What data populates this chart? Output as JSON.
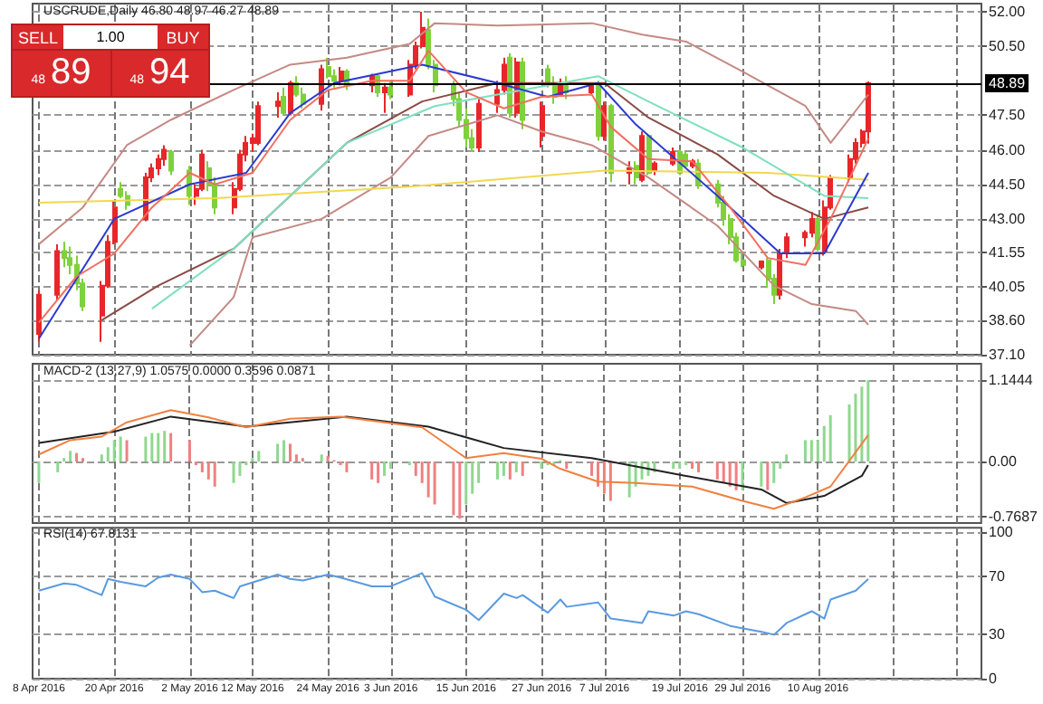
{
  "chart_data": [
    {
      "type": "candlestick",
      "title": "USCRUDE,Daily 46.80 48.97 46.27 48.89",
      "annotations": [
        "SELL",
        "1.00",
        "BUY",
        "48",
        "89",
        "48",
        "94"
      ],
      "x": [
        "2016-04-08",
        "2016-04-11",
        "2016-04-12",
        "2016-04-13",
        "2016-04-14",
        "2016-04-15",
        "2016-04-18",
        "2016-04-19",
        "2016-04-20",
        "2016-04-21",
        "2016-04-22",
        "2016-04-25",
        "2016-04-26",
        "2016-04-27",
        "2016-04-28",
        "2016-04-29",
        "2016-05-02",
        "2016-05-03",
        "2016-05-04",
        "2016-05-05",
        "2016-05-06",
        "2016-05-09",
        "2016-05-10",
        "2016-05-11",
        "2016-05-12",
        "2016-05-13",
        "2016-05-16",
        "2016-05-17",
        "2016-05-18",
        "2016-05-19",
        "2016-05-20",
        "2016-05-23",
        "2016-05-24",
        "2016-05-25",
        "2016-05-26",
        "2016-05-27",
        "2016-05-31",
        "2016-06-01",
        "2016-06-02",
        "2016-06-03",
        "2016-06-06",
        "2016-06-07",
        "2016-06-08",
        "2016-06-09",
        "2016-06-10",
        "2016-06-13",
        "2016-06-14",
        "2016-06-15",
        "2016-06-16",
        "2016-06-17",
        "2016-06-20",
        "2016-06-21",
        "2016-06-22",
        "2016-06-23",
        "2016-06-24",
        "2016-06-27",
        "2016-06-28",
        "2016-06-29",
        "2016-06-30",
        "2016-07-01",
        "2016-07-05",
        "2016-07-06",
        "2016-07-07",
        "2016-07-08",
        "2016-07-11",
        "2016-07-12",
        "2016-07-13",
        "2016-07-14",
        "2016-07-15",
        "2016-07-18",
        "2016-07-19",
        "2016-07-20",
        "2016-07-21",
        "2016-07-22",
        "2016-07-25",
        "2016-07-26",
        "2016-07-27",
        "2016-07-28",
        "2016-07-29",
        "2016-08-01",
        "2016-08-02",
        "2016-08-03",
        "2016-08-04",
        "2016-08-05",
        "2016-08-08",
        "2016-08-09",
        "2016-08-10",
        "2016-08-11",
        "2016-08-12",
        "2016-08-15",
        "2016-08-16",
        "2016-08-17",
        "2016-08-18"
      ],
      "ohlc": [
        [
          38.0,
          39.9,
          37.66,
          39.7
        ],
        [
          39.7,
          41.9,
          39.5,
          41.6
        ],
        [
          41.6,
          42.0,
          40.9,
          41.3
        ],
        [
          41.3,
          41.8,
          40.6,
          41.0
        ],
        [
          41.0,
          41.4,
          39.9,
          40.2
        ],
        [
          40.2,
          40.4,
          39.0,
          39.2
        ],
        [
          38.8,
          40.3,
          37.66,
          40.1
        ],
        [
          40.1,
          42.3,
          40.0,
          42.0
        ],
        [
          42.0,
          43.8,
          41.9,
          43.5
        ],
        [
          44.3,
          44.6,
          43.9,
          44.0
        ],
        [
          44.0,
          44.2,
          43.4,
          43.6
        ],
        [
          43.0,
          45.0,
          42.9,
          44.8
        ],
        [
          44.8,
          45.4,
          44.6,
          45.2
        ],
        [
          45.2,
          45.8,
          44.9,
          45.6
        ],
        [
          45.6,
          46.2,
          45.3,
          46.0
        ],
        [
          45.9,
          46.0,
          44.9,
          45.1
        ],
        [
          45.1,
          45.3,
          43.6,
          44.0
        ],
        [
          44.0,
          44.5,
          43.6,
          44.3
        ],
        [
          44.3,
          46.0,
          44.2,
          45.8
        ],
        [
          45.2,
          45.5,
          44.2,
          44.5
        ],
        [
          44.5,
          44.8,
          43.2,
          43.5
        ],
        [
          43.5,
          44.6,
          43.2,
          44.3
        ],
        [
          44.3,
          46.0,
          44.2,
          45.8
        ],
        [
          45.8,
          46.6,
          45.5,
          46.3
        ],
        [
          46.3,
          46.7,
          45.9,
          46.5
        ],
        [
          46.3,
          48.1,
          46.2,
          47.9
        ],
        [
          47.9,
          48.5,
          47.4,
          48.1
        ],
        [
          48.3,
          48.7,
          47.5,
          47.6
        ],
        [
          47.6,
          49.0,
          47.5,
          48.9
        ],
        [
          48.9,
          49.2,
          48.3,
          48.4
        ],
        [
          48.4,
          48.7,
          47.8,
          48.0
        ],
        [
          48.0,
          49.7,
          47.7,
          49.5
        ],
        [
          49.6,
          50.0,
          49.1,
          49.2
        ],
        [
          49.2,
          49.5,
          48.7,
          49.0
        ],
        [
          49.0,
          49.6,
          48.8,
          49.4
        ],
        [
          49.4,
          49.5,
          48.6,
          48.8
        ],
        [
          48.8,
          49.3,
          48.5,
          49.2
        ],
        [
          49.2,
          49.3,
          48.3,
          48.5
        ],
        [
          48.5,
          48.9,
          47.6,
          48.7
        ],
        [
          48.7,
          49.0,
          48.2,
          48.4
        ],
        [
          48.4,
          49.9,
          48.3,
          49.7
        ],
        [
          49.7,
          50.7,
          49.5,
          50.5
        ],
        [
          50.5,
          52.0,
          50.4,
          51.3
        ],
        [
          51.2,
          51.7,
          49.5,
          49.7
        ],
        [
          49.7,
          49.9,
          48.5,
          48.8
        ],
        [
          48.8,
          49.0,
          47.9,
          48.2
        ],
        [
          48.2,
          48.5,
          47.0,
          47.3
        ],
        [
          47.3,
          47.8,
          46.1,
          46.5
        ],
        [
          46.5,
          46.9,
          45.9,
          46.1
        ],
        [
          46.1,
          48.2,
          45.9,
          48.0
        ],
        [
          48.0,
          49.0,
          47.6,
          48.6
        ],
        [
          48.6,
          50.0,
          48.4,
          49.7
        ],
        [
          50.0,
          50.2,
          47.4,
          47.6
        ],
        [
          47.6,
          50.0,
          47.4,
          49.8
        ],
        [
          49.8,
          50.0,
          46.9,
          47.3
        ],
        [
          46.6,
          48.1,
          46.1,
          47.9
        ],
        [
          49.5,
          49.7,
          48.7,
          48.9
        ],
        [
          48.9,
          49.2,
          48.0,
          48.3
        ],
        [
          48.4,
          49.1,
          48.3,
          48.9
        ],
        [
          48.9,
          49.2,
          48.2,
          48.5
        ],
        [
          48.5,
          48.9,
          48.4,
          48.8
        ],
        [
          48.8,
          49.0,
          46.4,
          46.6
        ],
        [
          46.6,
          48.1,
          46.4,
          47.9
        ],
        [
          47.9,
          48.0,
          44.6,
          45.0
        ],
        [
          45.0,
          45.5,
          44.5,
          45.2
        ],
        [
          45.3,
          45.5,
          44.5,
          44.8
        ],
        [
          44.7,
          46.8,
          44.6,
          46.6
        ],
        [
          46.6,
          46.7,
          44.9,
          45.0
        ],
        [
          45.1,
          45.5,
          44.9,
          45.4
        ],
        [
          45.4,
          46.1,
          45.3,
          45.9
        ],
        [
          45.9,
          46.0,
          44.9,
          45.0
        ],
        [
          45.8,
          45.9,
          45.2,
          45.3
        ],
        [
          45.3,
          45.6,
          45.2,
          45.5
        ],
        [
          45.4,
          45.6,
          44.3,
          44.5
        ],
        [
          44.5,
          44.7,
          43.5,
          43.7
        ],
        [
          43.7,
          44.0,
          42.7,
          43.0
        ],
        [
          43.0,
          43.2,
          41.9,
          42.2
        ],
        [
          42.2,
          42.4,
          41.1,
          41.2
        ],
        [
          41.2,
          41.6,
          40.9,
          41.0
        ],
        [
          40.9,
          41.2,
          40.8,
          41.15
        ],
        [
          41.2,
          41.3,
          40.0,
          40.4
        ],
        [
          40.4,
          40.6,
          39.3,
          39.7
        ],
        [
          39.7,
          41.7,
          39.5,
          41.5
        ],
        [
          41.5,
          42.4,
          41.3,
          42.2
        ],
        [
          42.2,
          42.5,
          41.8,
          42.4
        ],
        [
          42.4,
          43.3,
          42.2,
          43.0
        ],
        [
          43.0,
          43.2,
          41.6,
          41.7
        ],
        [
          41.6,
          43.8,
          41.4,
          43.5
        ],
        [
          43.5,
          44.9,
          43.4,
          44.8
        ],
        [
          44.8,
          45.8,
          44.6,
          45.6
        ],
        [
          45.6,
          46.5,
          45.4,
          46.3
        ],
        [
          46.3,
          46.9,
          46.1,
          46.8
        ],
        [
          46.8,
          48.97,
          46.27,
          48.89
        ]
      ],
      "series": [
        {
          "type": "line",
          "color": "#c48a84",
          "x": [
            "2016-04-08",
            "2016-04-15",
            "2016-04-22",
            "2016-04-29",
            "2016-05-09",
            "2016-05-18",
            "2016-05-27",
            "2016-06-06",
            "2016-06-10",
            "2016-06-20",
            "2016-07-05",
            "2016-07-13",
            "2016-07-20",
            "2016-07-29",
            "2016-08-08",
            "2016-08-12",
            "2016-08-18"
          ],
          "values": [
            41.9,
            43.5,
            46.2,
            47.3,
            48.6,
            49.7,
            50.0,
            50.6,
            51.5,
            51.4,
            51.5,
            51.0,
            50.7,
            49.4,
            47.9,
            46.3,
            48.4
          ]
        },
        {
          "type": "line",
          "color": "#c48a84",
          "x": [
            "2016-05-02",
            "2016-05-09",
            "2016-05-12",
            "2016-05-23",
            "2016-06-03",
            "2016-06-09",
            "2016-06-20",
            "2016-06-27",
            "2016-07-05",
            "2016-07-14",
            "2016-07-25",
            "2016-08-03",
            "2016-08-09",
            "2016-08-16",
            "2016-08-18"
          ],
          "values": [
            37.5,
            39.6,
            42.2,
            43.0,
            44.8,
            46.6,
            47.5,
            46.8,
            46.2,
            44.8,
            42.7,
            40.1,
            39.3,
            39.0,
            38.4
          ]
        },
        {
          "type": "line",
          "color": "#8b4a44",
          "x": [
            "2016-04-18",
            "2016-04-27",
            "2016-05-09",
            "2016-05-18",
            "2016-05-27",
            "2016-06-08",
            "2016-06-20",
            "2016-07-07",
            "2016-07-14",
            "2016-07-25",
            "2016-08-03",
            "2016-08-11",
            "2016-08-18"
          ],
          "values": [
            38.6,
            40.1,
            41.7,
            44.0,
            46.3,
            48.1,
            48.9,
            48.9,
            47.4,
            45.8,
            44.0,
            43.0,
            43.5
          ]
        },
        {
          "type": "line",
          "color": "#f0d850",
          "x": [
            "2016-04-08",
            "2016-05-06",
            "2016-06-06",
            "2016-07-07",
            "2016-08-02",
            "2016-08-18"
          ],
          "values": [
            43.7,
            43.9,
            44.4,
            45.1,
            45.0,
            44.7
          ]
        },
        {
          "type": "line",
          "color": "#7fe0c0",
          "x": [
            "2016-04-26",
            "2016-05-09",
            "2016-05-18",
            "2016-05-27",
            "2016-06-10",
            "2016-06-20",
            "2016-07-06",
            "2016-07-14",
            "2016-07-29",
            "2016-08-11",
            "2016-08-18"
          ],
          "values": [
            39.1,
            41.7,
            44.0,
            46.3,
            47.9,
            48.4,
            49.2,
            48.1,
            46.1,
            44.0,
            43.9
          ]
        },
        {
          "type": "line",
          "color": "#2a3ad0",
          "x": [
            "2016-04-08",
            "2016-04-20",
            "2016-05-02",
            "2016-05-11",
            "2016-05-18",
            "2016-05-25",
            "2016-06-08",
            "2016-06-20",
            "2016-06-28",
            "2016-07-06",
            "2016-07-12",
            "2016-07-25",
            "2016-08-04",
            "2016-08-11",
            "2016-08-18"
          ],
          "values": [
            37.8,
            43.0,
            44.5,
            45.0,
            47.6,
            48.9,
            49.7,
            48.9,
            48.3,
            48.9,
            47.1,
            44.0,
            41.5,
            41.5,
            45.0
          ]
        },
        {
          "type": "line",
          "color": "#f07060",
          "x": [
            "2016-04-08",
            "2016-04-14",
            "2016-04-20",
            "2016-04-26",
            "2016-05-02",
            "2016-05-06",
            "2016-05-12",
            "2016-05-18",
            "2016-05-24",
            "2016-05-31",
            "2016-06-06",
            "2016-06-09",
            "2016-06-15",
            "2016-06-21",
            "2016-06-27",
            "2016-07-05",
            "2016-07-08",
            "2016-07-14",
            "2016-07-21",
            "2016-07-27",
            "2016-08-02",
            "2016-08-08",
            "2016-08-12",
            "2016-08-18"
          ],
          "values": [
            38.5,
            40.5,
            41.5,
            43.5,
            45.0,
            44.5,
            45.0,
            47.3,
            48.6,
            49.0,
            49.0,
            50.3,
            48.5,
            47.8,
            48.3,
            48.4,
            47.0,
            45.6,
            45.5,
            43.5,
            41.3,
            41.0,
            43.0,
            46.5
          ]
        }
      ],
      "xlim": [
        "2016-04-07",
        "2016-09-05"
      ],
      "xticks": [
        {
          "value": "2016-04-08",
          "label": null
        },
        {
          "value": "2016-04-20",
          "label": null
        },
        {
          "value": "2016-05-02",
          "label": null
        },
        {
          "value": "2016-05-12",
          "label": null
        },
        {
          "value": "2016-05-24",
          "label": null
        },
        {
          "value": "2016-06-03",
          "label": null
        },
        {
          "value": "2016-06-15",
          "label": null
        },
        {
          "value": "2016-06-27",
          "label": null
        },
        {
          "value": "2016-07-07",
          "label": null
        },
        {
          "value": "2016-07-19",
          "label": null
        },
        {
          "value": "2016-07-29",
          "label": null
        },
        {
          "value": "2016-08-10",
          "label": null
        },
        {
          "value": "2016-08-22",
          "label": null
        },
        {
          "value": "2016-09-01",
          "label": null
        }
      ],
      "ylim": [
        37.1,
        52.35
      ],
      "yticks": [
        {
          "value": 37.1,
          "label": "37.10"
        },
        {
          "value": 38.6,
          "label": "38.60"
        },
        40.05,
        41.55,
        {
          "value": 43,
          "label": "43.00"
        },
        {
          "value": 44.5,
          "label": "44.50"
        },
        {
          "value": 46,
          "label": "46.00"
        },
        {
          "value": 47.5,
          "label": "47.50"
        },
        {
          "value": 50.5,
          "label": "50.50"
        },
        {
          "value": 52,
          "label": "52.00"
        }
      ],
      "ref_lines": [
        {
          "axis": "y",
          "value": 48.89,
          "label": "48.89",
          "color": "#000000"
        }
      ],
      "grid": true,
      "marker": "none",
      "line_style": "solid",
      "tick_labels": "y"
    },
    {
      "type": "bar",
      "title": "MACD-2 (13,27,9) 1.0575 0.0000 0.3596 0.0871",
      "x": [
        "2016-04-08",
        "2016-04-11",
        "2016-04-12",
        "2016-04-13",
        "2016-04-14",
        "2016-04-15",
        "2016-04-18",
        "2016-04-19",
        "2016-04-20",
        "2016-04-21",
        "2016-04-22",
        "2016-04-25",
        "2016-04-26",
        "2016-04-27",
        "2016-04-28",
        "2016-04-29",
        "2016-05-02",
        "2016-05-03",
        "2016-05-04",
        "2016-05-05",
        "2016-05-06",
        "2016-05-09",
        "2016-05-10",
        "2016-05-11",
        "2016-05-12",
        "2016-05-13",
        "2016-05-16",
        "2016-05-17",
        "2016-05-18",
        "2016-05-19",
        "2016-05-20",
        "2016-05-23",
        "2016-05-24",
        "2016-05-25",
        "2016-05-26",
        "2016-05-27",
        "2016-05-31",
        "2016-06-01",
        "2016-06-02",
        "2016-06-03",
        "2016-06-06",
        "2016-06-07",
        "2016-06-08",
        "2016-06-09",
        "2016-06-10",
        "2016-06-13",
        "2016-06-14",
        "2016-06-15",
        "2016-06-16",
        "2016-06-17",
        "2016-06-20",
        "2016-06-21",
        "2016-06-22",
        "2016-06-23",
        "2016-06-24",
        "2016-06-27",
        "2016-06-28",
        "2016-06-29",
        "2016-06-30",
        "2016-07-01",
        "2016-07-05",
        "2016-07-06",
        "2016-07-07",
        "2016-07-08",
        "2016-07-11",
        "2016-07-12",
        "2016-07-13",
        "2016-07-14",
        "2016-07-15",
        "2016-07-18",
        "2016-07-19",
        "2016-07-20",
        "2016-07-21",
        "2016-07-22",
        "2016-07-25",
        "2016-07-26",
        "2016-07-27",
        "2016-07-28",
        "2016-07-29",
        "2016-08-01",
        "2016-08-02",
        "2016-08-03",
        "2016-08-04",
        "2016-08-05",
        "2016-08-08",
        "2016-08-09",
        "2016-08-10",
        "2016-08-11",
        "2016-08-12",
        "2016-08-15",
        "2016-08-16",
        "2016-08-17",
        "2016-08-18"
      ],
      "values": [
        -0.3,
        -0.15,
        0.05,
        0.15,
        0.12,
        0.05,
        0.1,
        0.2,
        0.3,
        0.35,
        0.3,
        0.35,
        0.4,
        0.4,
        0.43,
        0.4,
        0.3,
        -0.05,
        -0.15,
        -0.25,
        -0.35,
        -0.3,
        -0.2,
        -0.05,
        0.05,
        0.15,
        0.25,
        0.3,
        0.25,
        0.1,
        0.05,
        0.1,
        0.08,
        0.02,
        -0.05,
        -0.15,
        -0.25,
        -0.3,
        -0.2,
        -0.1,
        -0.05,
        -0.2,
        -0.3,
        -0.5,
        -0.6,
        -0.75,
        -0.8,
        -0.6,
        -0.45,
        -0.3,
        -0.25,
        -0.2,
        -0.25,
        -0.15,
        -0.2,
        -0.1,
        -0.05,
        -0.05,
        0.02,
        -0.1,
        -0.2,
        -0.35,
        -0.45,
        -0.55,
        -0.5,
        -0.35,
        -0.25,
        -0.2,
        -0.15,
        -0.1,
        -0.1,
        -0.05,
        -0.1,
        -0.15,
        -0.25,
        -0.3,
        -0.35,
        -0.4,
        -0.4,
        -0.35,
        -0.4,
        -0.3,
        -0.1,
        0.1,
        0.3,
        0.3,
        0.3,
        0.5,
        0.65,
        0.8,
        0.95,
        1.05,
        1.14
      ],
      "colors": [
        "#8fd88f",
        "#8fd88f",
        "#8fd88f",
        "#8fd88f",
        "#f08080",
        "#f08080",
        "#8fd88f",
        "#8fd88f",
        "#8fd88f",
        "#8fd88f",
        "#f08080",
        "#8fd88f",
        "#8fd88f",
        "#8fd88f",
        "#8fd88f",
        "#f08080",
        "#f08080",
        "#f08080",
        "#f08080",
        "#f08080",
        "#f08080",
        "#8fd88f",
        "#8fd88f",
        "#8fd88f",
        "#8fd88f",
        "#8fd88f",
        "#8fd88f",
        "#8fd88f",
        "#f08080",
        "#f08080",
        "#f08080",
        "#8fd88f",
        "#f08080",
        "#f08080",
        "#f08080",
        "#f08080",
        "#f08080",
        "#f08080",
        "#8fd88f",
        "#8fd88f",
        "#8fd88f",
        "#f08080",
        "#f08080",
        "#f08080",
        "#f08080",
        "#f08080",
        "#f08080",
        "#8fd88f",
        "#8fd88f",
        "#8fd88f",
        "#8fd88f",
        "#8fd88f",
        "#f08080",
        "#8fd88f",
        "#f08080",
        "#8fd88f",
        "#8fd88f",
        "#8fd88f",
        "#8fd88f",
        "#f08080",
        "#f08080",
        "#f08080",
        "#f08080",
        "#f08080",
        "#8fd88f",
        "#8fd88f",
        "#8fd88f",
        "#8fd88f",
        "#8fd88f",
        "#8fd88f",
        "#8fd88f",
        "#8fd88f",
        "#f08080",
        "#f08080",
        "#f08080",
        "#f08080",
        "#f08080",
        "#f08080",
        "#8fd88f",
        "#8fd88f",
        "#f08080",
        "#8fd88f",
        "#8fd88f",
        "#8fd88f",
        "#8fd88f",
        "#8fd88f",
        "#8fd88f",
        "#8fd88f",
        "#8fd88f",
        "#8fd88f",
        "#8fd88f",
        "#8fd88f",
        "#8fd88f"
      ],
      "series": [
        {
          "type": "line",
          "color": "#222222",
          "x": [
            "2016-04-08",
            "2016-04-20",
            "2016-04-29",
            "2016-05-11",
            "2016-05-27",
            "2016-06-09",
            "2016-06-21",
            "2016-07-05",
            "2016-07-20",
            "2016-08-01",
            "2016-08-05",
            "2016-08-11",
            "2016-08-17",
            "2016-08-18"
          ],
          "values": [
            0.26,
            0.42,
            0.63,
            0.49,
            0.63,
            0.49,
            0.19,
            0.05,
            -0.2,
            -0.39,
            -0.58,
            -0.48,
            -0.2,
            -0.05
          ]
        },
        {
          "type": "line",
          "color": "#f08040",
          "x": [
            "2016-04-08",
            "2016-04-13",
            "2016-04-18",
            "2016-04-22",
            "2016-04-29",
            "2016-05-05",
            "2016-05-11",
            "2016-05-18",
            "2016-05-26",
            "2016-06-02",
            "2016-06-08",
            "2016-06-15",
            "2016-06-21",
            "2016-06-27",
            "2016-06-30",
            "2016-07-06",
            "2016-07-12",
            "2016-07-21",
            "2016-07-29",
            "2016-08-03",
            "2016-08-08",
            "2016-08-12",
            "2016-08-18"
          ],
          "values": [
            0.1,
            0.3,
            0.35,
            0.55,
            0.72,
            0.62,
            0.48,
            0.6,
            0.63,
            0.55,
            0.48,
            0.05,
            0.12,
            0.04,
            -0.1,
            -0.28,
            -0.3,
            -0.35,
            -0.55,
            -0.66,
            -0.5,
            -0.35,
            0.37
          ]
        }
      ],
      "xlim": [
        "2016-04-07",
        "2016-09-05"
      ],
      "xticks": [
        {
          "value": "2016-04-08",
          "label": null
        },
        {
          "value": "2016-04-20",
          "label": null
        },
        {
          "value": "2016-05-02",
          "label": null
        },
        {
          "value": "2016-05-12",
          "label": null
        },
        {
          "value": "2016-05-24",
          "label": null
        },
        {
          "value": "2016-06-03",
          "label": null
        },
        {
          "value": "2016-06-15",
          "label": null
        },
        {
          "value": "2016-06-27",
          "label": null
        },
        {
          "value": "2016-07-07",
          "label": null
        },
        {
          "value": "2016-07-19",
          "label": null
        },
        {
          "value": "2016-07-29",
          "label": null
        },
        {
          "value": "2016-08-10",
          "label": null
        },
        {
          "value": "2016-08-22",
          "label": null
        },
        {
          "value": "2016-09-01",
          "label": null
        }
      ],
      "ylim": [
        -0.86,
        1.37
      ],
      "yticks": [
        -0.7687,
        {
          "value": 0,
          "label": "0.00"
        },
        1.1444
      ],
      "grid": true,
      "marker": "none",
      "line_style": "solid",
      "tick_labels": "y"
    },
    {
      "type": "line",
      "title": "RSI(14) 67.8131",
      "color": "#5a9ae0",
      "x": [
        "2016-04-08",
        "2016-04-12",
        "2016-04-14",
        "2016-04-18",
        "2016-04-19",
        "2016-04-21",
        "2016-04-25",
        "2016-04-27",
        "2016-04-29",
        "2016-05-02",
        "2016-05-04",
        "2016-05-06",
        "2016-05-09",
        "2016-05-10",
        "2016-05-13",
        "2016-05-16",
        "2016-05-18",
        "2016-05-20",
        "2016-05-24",
        "2016-05-26",
        "2016-05-31",
        "2016-06-03",
        "2016-06-08",
        "2016-06-10",
        "2016-06-15",
        "2016-06-17",
        "2016-06-21",
        "2016-06-23",
        "2016-06-24",
        "2016-06-28",
        "2016-06-30",
        "2016-07-01",
        "2016-07-06",
        "2016-07-08",
        "2016-07-13",
        "2016-07-14",
        "2016-07-18",
        "2016-07-20",
        "2016-07-22",
        "2016-07-27",
        "2016-08-01",
        "2016-08-03",
        "2016-08-05",
        "2016-08-09",
        "2016-08-11",
        "2016-08-12",
        "2016-08-16",
        "2016-08-18"
      ],
      "values": [
        60,
        65,
        64,
        57,
        68,
        66,
        63,
        69,
        71,
        68,
        59,
        60,
        55,
        63,
        67,
        71,
        68,
        67,
        71,
        69,
        63,
        63,
        72,
        56,
        47,
        40,
        58,
        55,
        57,
        45,
        54,
        49,
        52,
        41,
        38,
        46,
        43,
        46,
        44,
        36,
        32,
        30,
        38,
        46,
        41,
        54,
        60,
        68
      ],
      "xlim": [
        "2016-04-07",
        "2016-09-05"
      ],
      "xticks": [
        {
          "value": "2016-04-08",
          "label": "8 Apr 2016"
        },
        {
          "value": "2016-04-20",
          "label": "20 Apr 2016"
        },
        {
          "value": "2016-05-02",
          "label": "2 May 2016"
        },
        {
          "value": "2016-05-12",
          "label": "12 May 2016"
        },
        {
          "value": "2016-05-24",
          "label": "24 May 2016"
        },
        {
          "value": "2016-06-03",
          "label": "3 Jun 2016"
        },
        {
          "value": "2016-06-15",
          "label": "15 Jun 2016"
        },
        {
          "value": "2016-06-27",
          "label": "27 Jun 2016"
        },
        {
          "value": "2016-07-07",
          "label": "7 Jul 2016"
        },
        {
          "value": "2016-07-19",
          "label": "19 Jul 2016"
        },
        {
          "value": "2016-07-29",
          "label": "29 Jul 2016"
        },
        {
          "value": "2016-08-10",
          "label": "10 Aug 2016"
        },
        {
          "value": "2016-08-22",
          "label": null
        },
        {
          "value": "2016-09-01",
          "label": null
        }
      ],
      "ylim": [
        0,
        103
      ],
      "yticks": [
        0,
        30,
        70,
        100
      ],
      "grid": true,
      "marker": "none",
      "line_style": "solid"
    }
  ]
}
